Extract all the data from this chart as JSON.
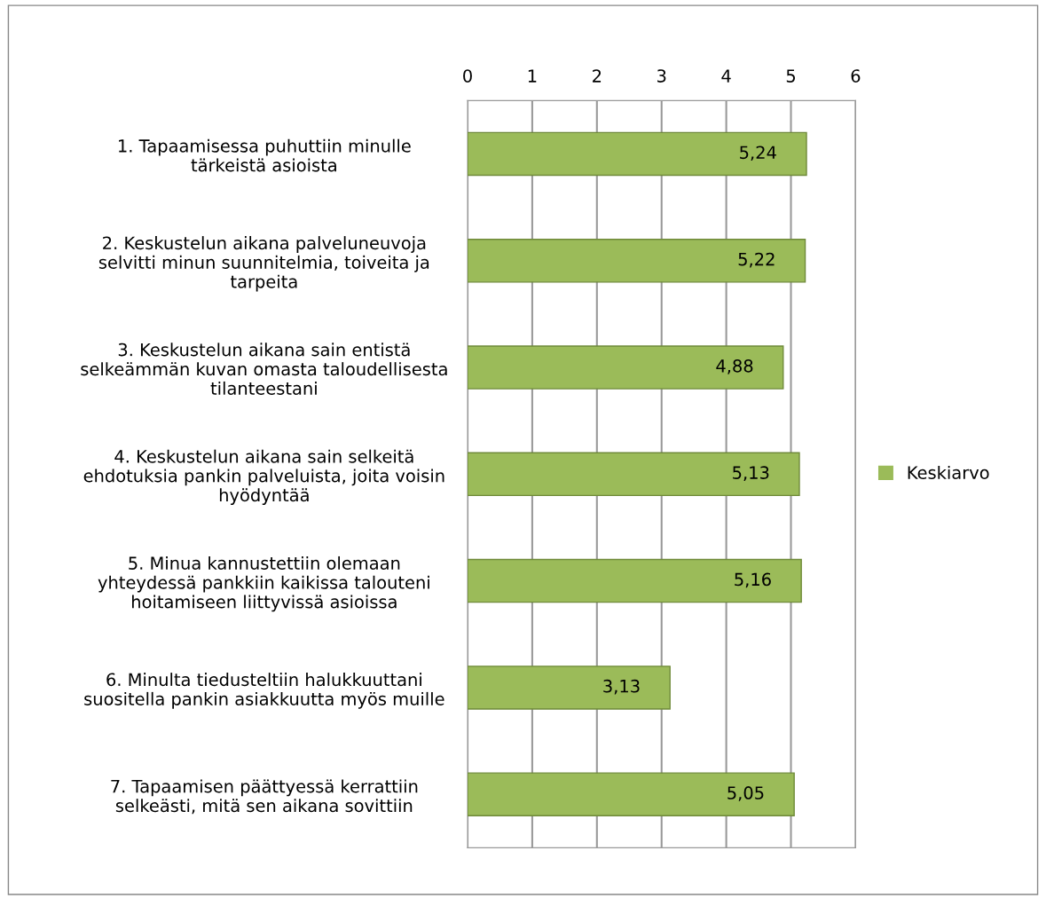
{
  "chart_data": {
    "type": "bar",
    "orientation": "horizontal",
    "categories": [
      "1. Tapaamisessa puhuttiin minulle\ntärkeistä asioista",
      "2. Keskustelun aikana palveluneuvoja\nselvitti minun suunnitelmia, toiveita ja\ntarpeita",
      "3. Keskustelun aikana sain entistä\nselkeämmän kuvan omasta taloudellisesta\ntilanteestani",
      "4. Keskustelun aikana sain selkeitä\nehdotuksia pankin palveluista, joita voisin\nhyödyntää",
      "5. Minua kannustettiin olemaan\nyhteydessä pankkiin kaikissa talouteni\nhoitamiseen liittyvissä asioissa",
      "6. Minulta tiedusteltiin halukkuuttani\nsuositella pankin asiakkuutta myös muille",
      "7. Tapaamisen päättyessä kerrattiin\nselkeästi, mitä sen aikana sovittiin"
    ],
    "series": [
      {
        "name": "Keskiarvo",
        "color": "#9bbb59",
        "values": [
          5.24,
          5.22,
          4.88,
          5.13,
          5.16,
          3.13,
          5.05
        ],
        "value_labels": [
          "5,24",
          "5,22",
          "4,88",
          "5,13",
          "5,16",
          "3,13",
          "5,05"
        ]
      }
    ],
    "xlim": [
      0,
      6
    ],
    "xticks": [
      0,
      1,
      2,
      3,
      4,
      5,
      6
    ],
    "grid": "x",
    "legend": "right"
  }
}
